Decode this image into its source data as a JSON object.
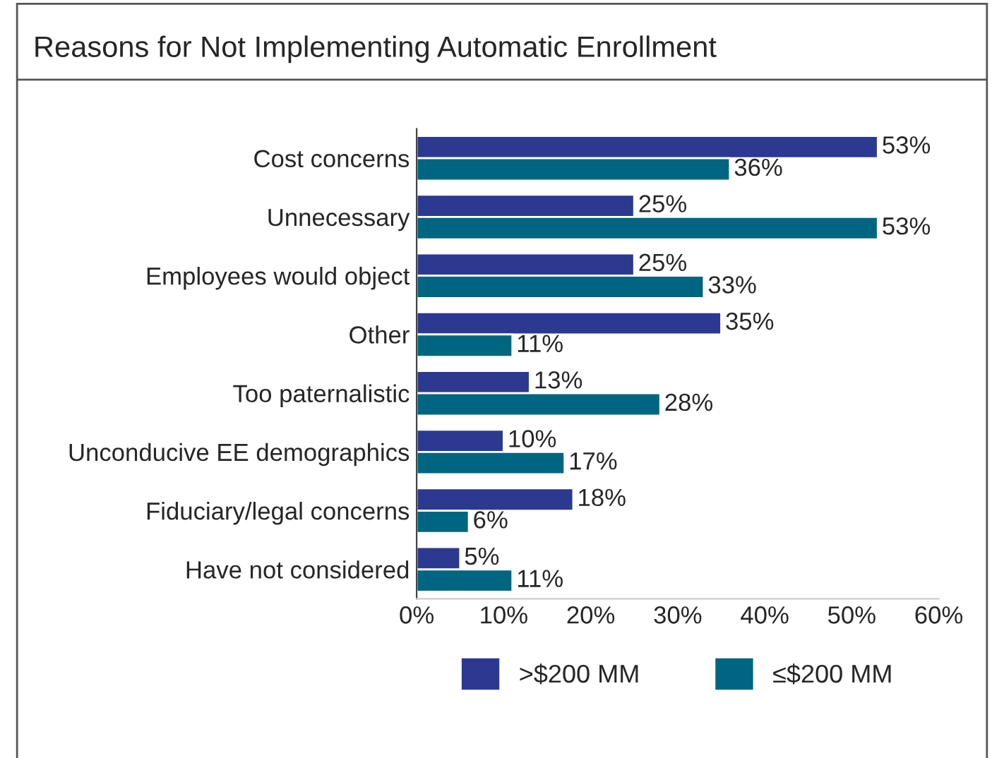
{
  "chart_data": {
    "type": "bar",
    "orientation": "horizontal",
    "title": "Reasons for Not Implementing Automatic Enrollment",
    "categories": [
      "Cost concerns",
      "Unnecessary",
      "Employees would object",
      "Other",
      "Too paternalistic",
      "Unconducive EE demographics",
      "Fiduciary/legal concerns",
      "Have not considered"
    ],
    "series": [
      {
        "name": ">$200 MM",
        "color": "#2b3990",
        "values": [
          53,
          25,
          25,
          35,
          13,
          10,
          18,
          5
        ],
        "value_labels": [
          "53%",
          "25%",
          "25%",
          "35%",
          "13%",
          "10%",
          "18%",
          "5%"
        ]
      },
      {
        "name": "≤$200 MM",
        "color": "#006580",
        "values": [
          36,
          53,
          33,
          11,
          28,
          17,
          6,
          11
        ],
        "value_labels": [
          "36%",
          "53%",
          "33%",
          "11%",
          "28%",
          "17%",
          "6%",
          "11%"
        ]
      }
    ],
    "xlim": [
      0,
      60
    ],
    "xticks": [
      {
        "value": 0,
        "label": "0%"
      },
      {
        "value": 10,
        "label": "10%"
      },
      {
        "value": 20,
        "label": "20%"
      },
      {
        "value": 30,
        "label": "30%"
      },
      {
        "value": 40,
        "label": "40%"
      },
      {
        "value": 50,
        "label": "50%"
      },
      {
        "value": 60,
        "label": "60%"
      }
    ],
    "grid": false,
    "legend": "bottom"
  }
}
